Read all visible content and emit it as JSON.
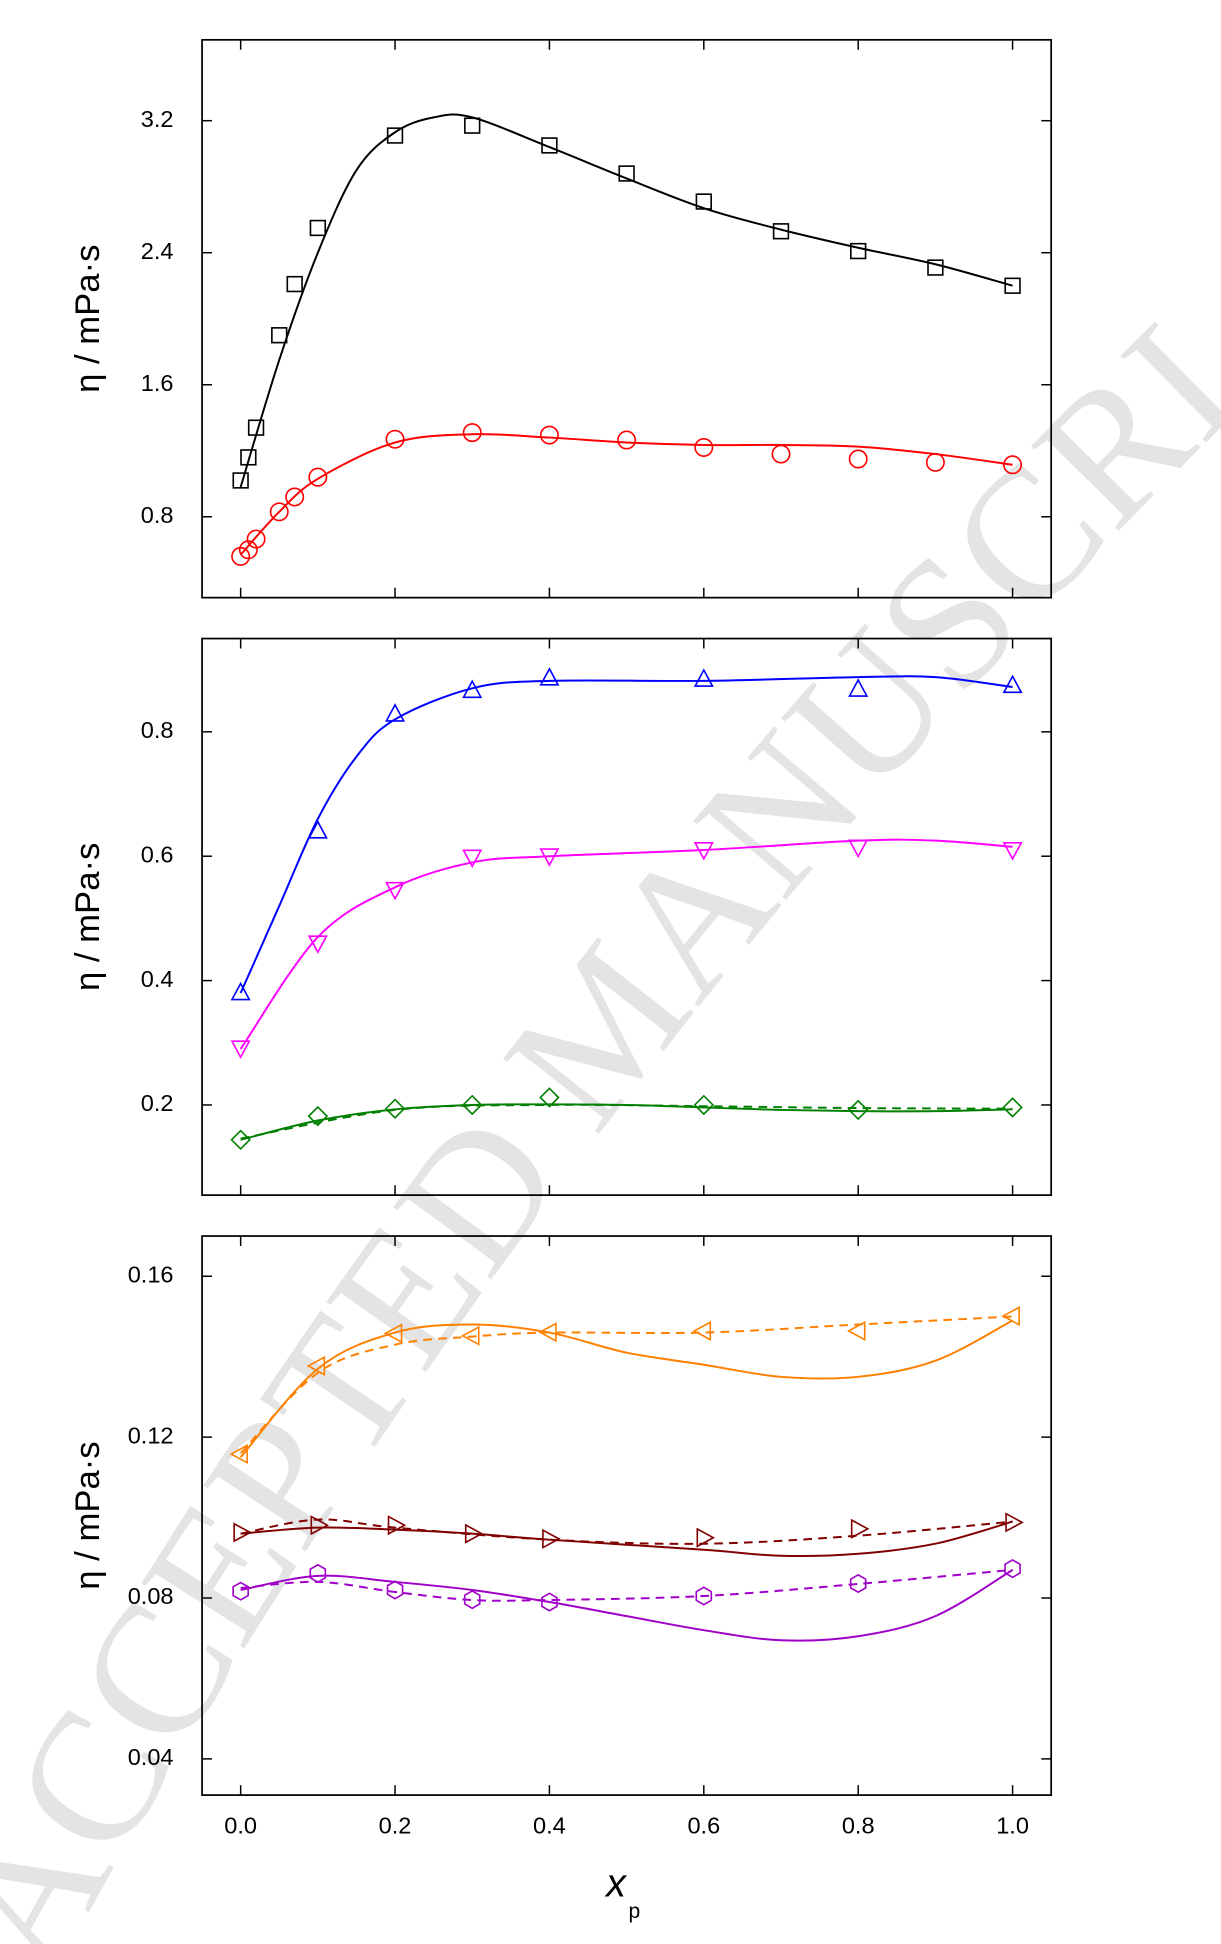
{
  "watermark": "ACCEPTED MANUSCRIPT",
  "chart_data": [
    {
      "type": "scatter",
      "ylabel": "η / mPa·s",
      "xlim": [
        -0.05,
        1.05
      ],
      "ylim": [
        0.31,
        3.69
      ],
      "xticks": [
        0,
        0.2,
        0.4,
        0.6,
        0.8,
        1
      ],
      "yticks": [
        0.8,
        1.6,
        2.4,
        3.2
      ],
      "x": [
        0,
        0.01,
        0.02,
        0.05,
        0.07,
        0.1,
        0.2,
        0.3,
        0.4,
        0.5,
        0.6,
        0.7,
        0.8,
        0.9,
        1.0
      ],
      "series": [
        {
          "color": "#000000",
          "marker": "square",
          "values": [
            1.02,
            1.16,
            1.34,
            1.9,
            2.21,
            2.55,
            3.11,
            3.17,
            3.05,
            2.88,
            2.71,
            2.53,
            2.41,
            2.31,
            2.2
          ],
          "fits": [
            {
              "style": "solid",
              "x": [
                0,
                0.05,
                0.1,
                0.15,
                0.2,
                0.25,
                0.3,
                0.4,
                0.5,
                0.6,
                0.7,
                0.8,
                0.9,
                1.0
              ],
              "values": [
                0.98,
                1.75,
                2.4,
                2.9,
                3.13,
                3.22,
                3.22,
                3.04,
                2.85,
                2.67,
                2.54,
                2.43,
                2.33,
                2.2
              ]
            }
          ]
        },
        {
          "color": "#ff0000",
          "marker": "circle",
          "values": [
            0.56,
            0.6,
            0.665,
            0.83,
            0.92,
            1.04,
            1.27,
            1.31,
            1.295,
            1.265,
            1.22,
            1.18,
            1.15,
            1.13,
            1.115
          ],
          "fits": [
            {
              "style": "solid",
              "x": [
                0,
                0.05,
                0.1,
                0.2,
                0.3,
                0.4,
                0.5,
                0.6,
                0.7,
                0.8,
                0.9,
                1.0
              ],
              "values": [
                0.57,
                0.83,
                1.03,
                1.25,
                1.3,
                1.28,
                1.25,
                1.235,
                1.235,
                1.225,
                1.18,
                1.115
              ]
            }
          ]
        }
      ]
    },
    {
      "type": "scatter",
      "ylabel": "η / mPa·s",
      "xlim": [
        -0.05,
        1.05
      ],
      "ylim": [
        0.055,
        0.95
      ],
      "xticks": [
        0,
        0.2,
        0.4,
        0.6,
        0.8,
        1
      ],
      "yticks": [
        0.2,
        0.4,
        0.6,
        0.8
      ],
      "x": [
        0,
        0.1,
        0.2,
        0.3,
        0.4,
        0.6,
        0.8,
        1.0
      ],
      "series": [
        {
          "color": "#0000ff",
          "marker": "triangle-up",
          "values": [
            0.38,
            0.64,
            0.828,
            0.866,
            0.886,
            0.884,
            0.868,
            0.874
          ],
          "fits": [
            {
              "style": "solid",
              "x": [
                0,
                0.05,
                0.1,
                0.15,
                0.2,
                0.3,
                0.4,
                0.6,
                0.8,
                0.9,
                1.0
              ],
              "values": [
                0.38,
                0.52,
                0.66,
                0.76,
                0.82,
                0.87,
                0.882,
                0.882,
                0.888,
                0.888,
                0.872
              ]
            }
          ]
        },
        {
          "color": "#ff00ff",
          "marker": "triangle-down",
          "values": [
            0.292,
            0.461,
            0.547,
            0.599,
            0.601,
            0.611,
            0.615,
            0.611
          ],
          "fits": [
            {
              "style": "solid",
              "x": [
                0,
                0.1,
                0.2,
                0.3,
                0.4,
                0.6,
                0.8,
                0.9,
                1.0
              ],
              "values": [
                0.29,
                0.47,
                0.55,
                0.59,
                0.6,
                0.61,
                0.625,
                0.625,
                0.615
              ]
            }
          ]
        },
        {
          "color": "#007f00",
          "marker": "diamond",
          "values": [
            0.144,
            0.182,
            0.194,
            0.2,
            0.212,
            0.2,
            0.192,
            0.196
          ],
          "fits": [
            {
              "style": "solid",
              "x": [
                0,
                0.1,
                0.2,
                0.3,
                0.4,
                0.5,
                0.6,
                0.7,
                0.8,
                0.9,
                1.0
              ],
              "values": [
                0.144,
                0.175,
                0.193,
                0.2,
                0.201,
                0.2,
                0.196,
                0.192,
                0.19,
                0.19,
                0.193
              ]
            },
            {
              "style": "dashed",
              "x": [
                0,
                0.2,
                0.4,
                0.6,
                0.8,
                1.0
              ],
              "values": [
                0.146,
                0.192,
                0.2,
                0.198,
                0.195,
                0.194
              ]
            }
          ]
        }
      ]
    },
    {
      "type": "scatter",
      "ylabel": "η / mPa·s",
      "xlabel": "x",
      "xlabel_subscript": "p",
      "xlim": [
        -0.05,
        1.05
      ],
      "ylim": [
        0.031,
        0.17
      ],
      "xticks": [
        {
          "value": 0,
          "label": "0.0"
        },
        {
          "value": 0.2,
          "label": "0.2"
        },
        {
          "value": 0.4,
          "label": "0.4"
        },
        {
          "value": 0.6,
          "label": "0.6"
        },
        {
          "value": 0.8,
          "label": "0.8"
        },
        {
          "value": 1,
          "label": "1.0"
        }
      ],
      "yticks": [
        0.04,
        0.08,
        0.12,
        0.16
      ],
      "x": [
        0,
        0.1,
        0.2,
        0.3,
        0.4,
        0.6,
        0.8,
        1.0
      ],
      "series": [
        {
          "color": "#ff8000",
          "marker": "triangle-left",
          "values": [
            0.1158,
            0.1377,
            0.1458,
            0.1452,
            0.1461,
            0.1464,
            0.1464,
            0.1501
          ],
          "fits": [
            {
              "style": "solid",
              "x": [
                0,
                0.1,
                0.2,
                0.3,
                0.4,
                0.5,
                0.6,
                0.7,
                0.8,
                0.9,
                1.0
              ],
              "values": [
                0.115,
                0.137,
                0.146,
                0.148,
                0.146,
                0.141,
                0.138,
                0.135,
                0.135,
                0.139,
                0.149
              ]
            },
            {
              "style": "dashed",
              "x": [
                0,
                0.1,
                0.2,
                0.3,
                0.4,
                0.6,
                0.8,
                1.0
              ],
              "values": [
                0.116,
                0.136,
                0.143,
                0.145,
                0.146,
                0.146,
                0.148,
                0.15
              ]
            }
          ]
        },
        {
          "color": "#800000",
          "marker": "triangle-right",
          "values": [
            0.0963,
            0.0981,
            0.0981,
            0.096,
            0.0947,
            0.095,
            0.0972,
            0.0988
          ],
          "fits": [
            {
              "style": "solid",
              "x": [
                0,
                0.1,
                0.2,
                0.3,
                0.4,
                0.6,
                0.7,
                0.8,
                0.9,
                1.0
              ],
              "values": [
                0.096,
                0.0975,
                0.097,
                0.096,
                0.0945,
                0.092,
                0.0905,
                0.091,
                0.0935,
                0.099
              ]
            },
            {
              "style": "dashed",
              "x": [
                0,
                0.1,
                0.2,
                0.4,
                0.6,
                0.8,
                1.0
              ],
              "values": [
                0.096,
                0.0995,
                0.0975,
                0.0945,
                0.0935,
                0.0955,
                0.099
              ]
            }
          ]
        },
        {
          "color": "#a000c8",
          "marker": "hexagon",
          "values": [
            0.0817,
            0.0861,
            0.082,
            0.0796,
            0.079,
            0.0805,
            0.0836,
            0.0873
          ],
          "fits": [
            {
              "style": "solid",
              "x": [
                0,
                0.1,
                0.2,
                0.3,
                0.4,
                0.5,
                0.6,
                0.7,
                0.8,
                0.9,
                1.0
              ],
              "values": [
                0.082,
                0.0855,
                0.084,
                0.082,
                0.079,
                0.0755,
                0.072,
                0.0695,
                0.0705,
                0.0755,
                0.087
              ]
            },
            {
              "style": "dashed",
              "x": [
                0,
                0.1,
                0.2,
                0.3,
                0.4,
                0.6,
                0.8,
                1.0
              ],
              "values": [
                0.0825,
                0.084,
                0.0815,
                0.0795,
                0.0795,
                0.0805,
                0.0835,
                0.087
              ]
            }
          ]
        }
      ]
    }
  ]
}
